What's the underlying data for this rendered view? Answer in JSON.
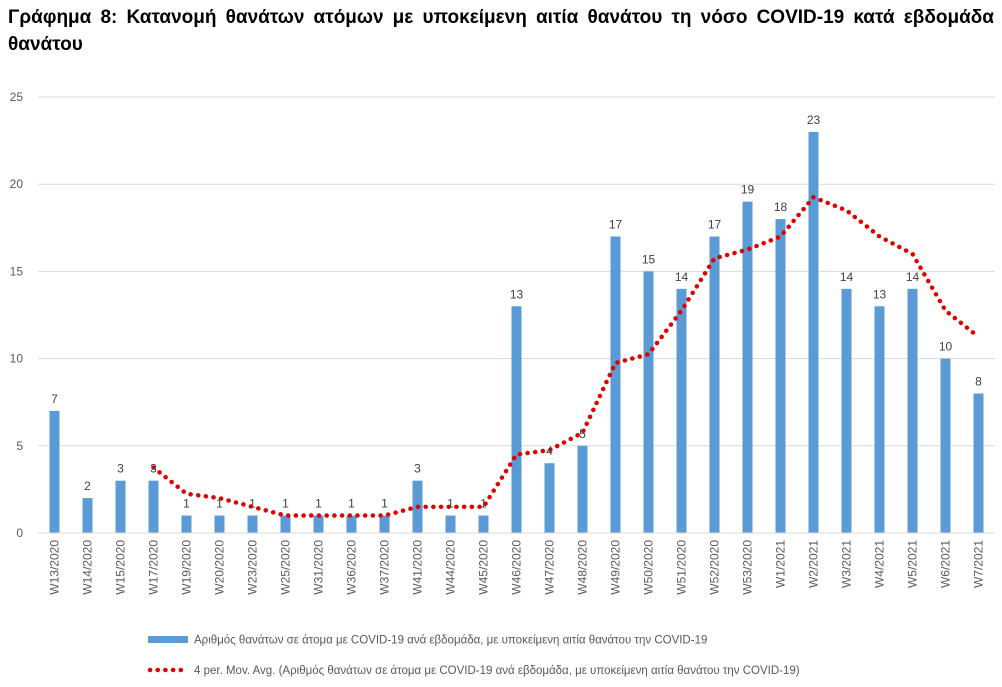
{
  "chart_data": {
    "type": "bar",
    "title": "Γράφημα 8: Κατανομή θανάτων ατόμων με υποκείμενη αιτία θανάτου τη νόσο COVID-19 κατά εβδομάδα θανάτου",
    "xlabel": "",
    "ylabel": "",
    "ylim": [
      0,
      25
    ],
    "yticks": [
      0,
      5,
      10,
      15,
      20,
      25
    ],
    "grid": true,
    "legend_position": "bottom",
    "categories": [
      "W13/2020",
      "W14/2020",
      "W15/2020",
      "W17/2020",
      "W19/2020",
      "W20/2020",
      "W23/2020",
      "W25/2020",
      "W31/2020",
      "W36/2020",
      "W37/2020",
      "W41/2020",
      "W44/2020",
      "W45/2020",
      "W46/2020",
      "W47/2020",
      "W48/2020",
      "W49/2020",
      "W50/2020",
      "W51/2020",
      "W52/2020",
      "W53/2020",
      "W1/2021",
      "W2/2021",
      "W3/2021",
      "W4/2021",
      "W5/2021",
      "W6/2021",
      "W7/2021"
    ],
    "series": [
      {
        "name": "Αριθμός θανάτων σε άτομα με COVID-19 ανά εβδομάδα, με υποκείμενη αιτία θανάτου την COVID-19",
        "type": "bar",
        "color": "#5B9BD5",
        "values": [
          7,
          2,
          3,
          3,
          1,
          1,
          1,
          1,
          1,
          1,
          1,
          3,
          1,
          1,
          13,
          4,
          5,
          17,
          15,
          14,
          17,
          19,
          18,
          23,
          14,
          13,
          14,
          10,
          8
        ]
      },
      {
        "name": "4 per. Mov. Avg. (Αριθμός θανάτων σε άτομα με COVID-19 ανά εβδομάδα, με υποκείμενη αιτία θανάτου την COVID-19)",
        "type": "line",
        "style": "dotted",
        "color": "#E00000",
        "values": [
          null,
          null,
          null,
          3.75,
          2.25,
          2,
          1.5,
          1,
          1,
          1,
          1,
          1.5,
          1.5,
          1.5,
          4.5,
          4.75,
          5.75,
          9.75,
          10.25,
          12.75,
          15.75,
          16.25,
          17,
          19.25,
          18.5,
          17,
          16,
          12.75,
          11.25
        ]
      }
    ]
  }
}
